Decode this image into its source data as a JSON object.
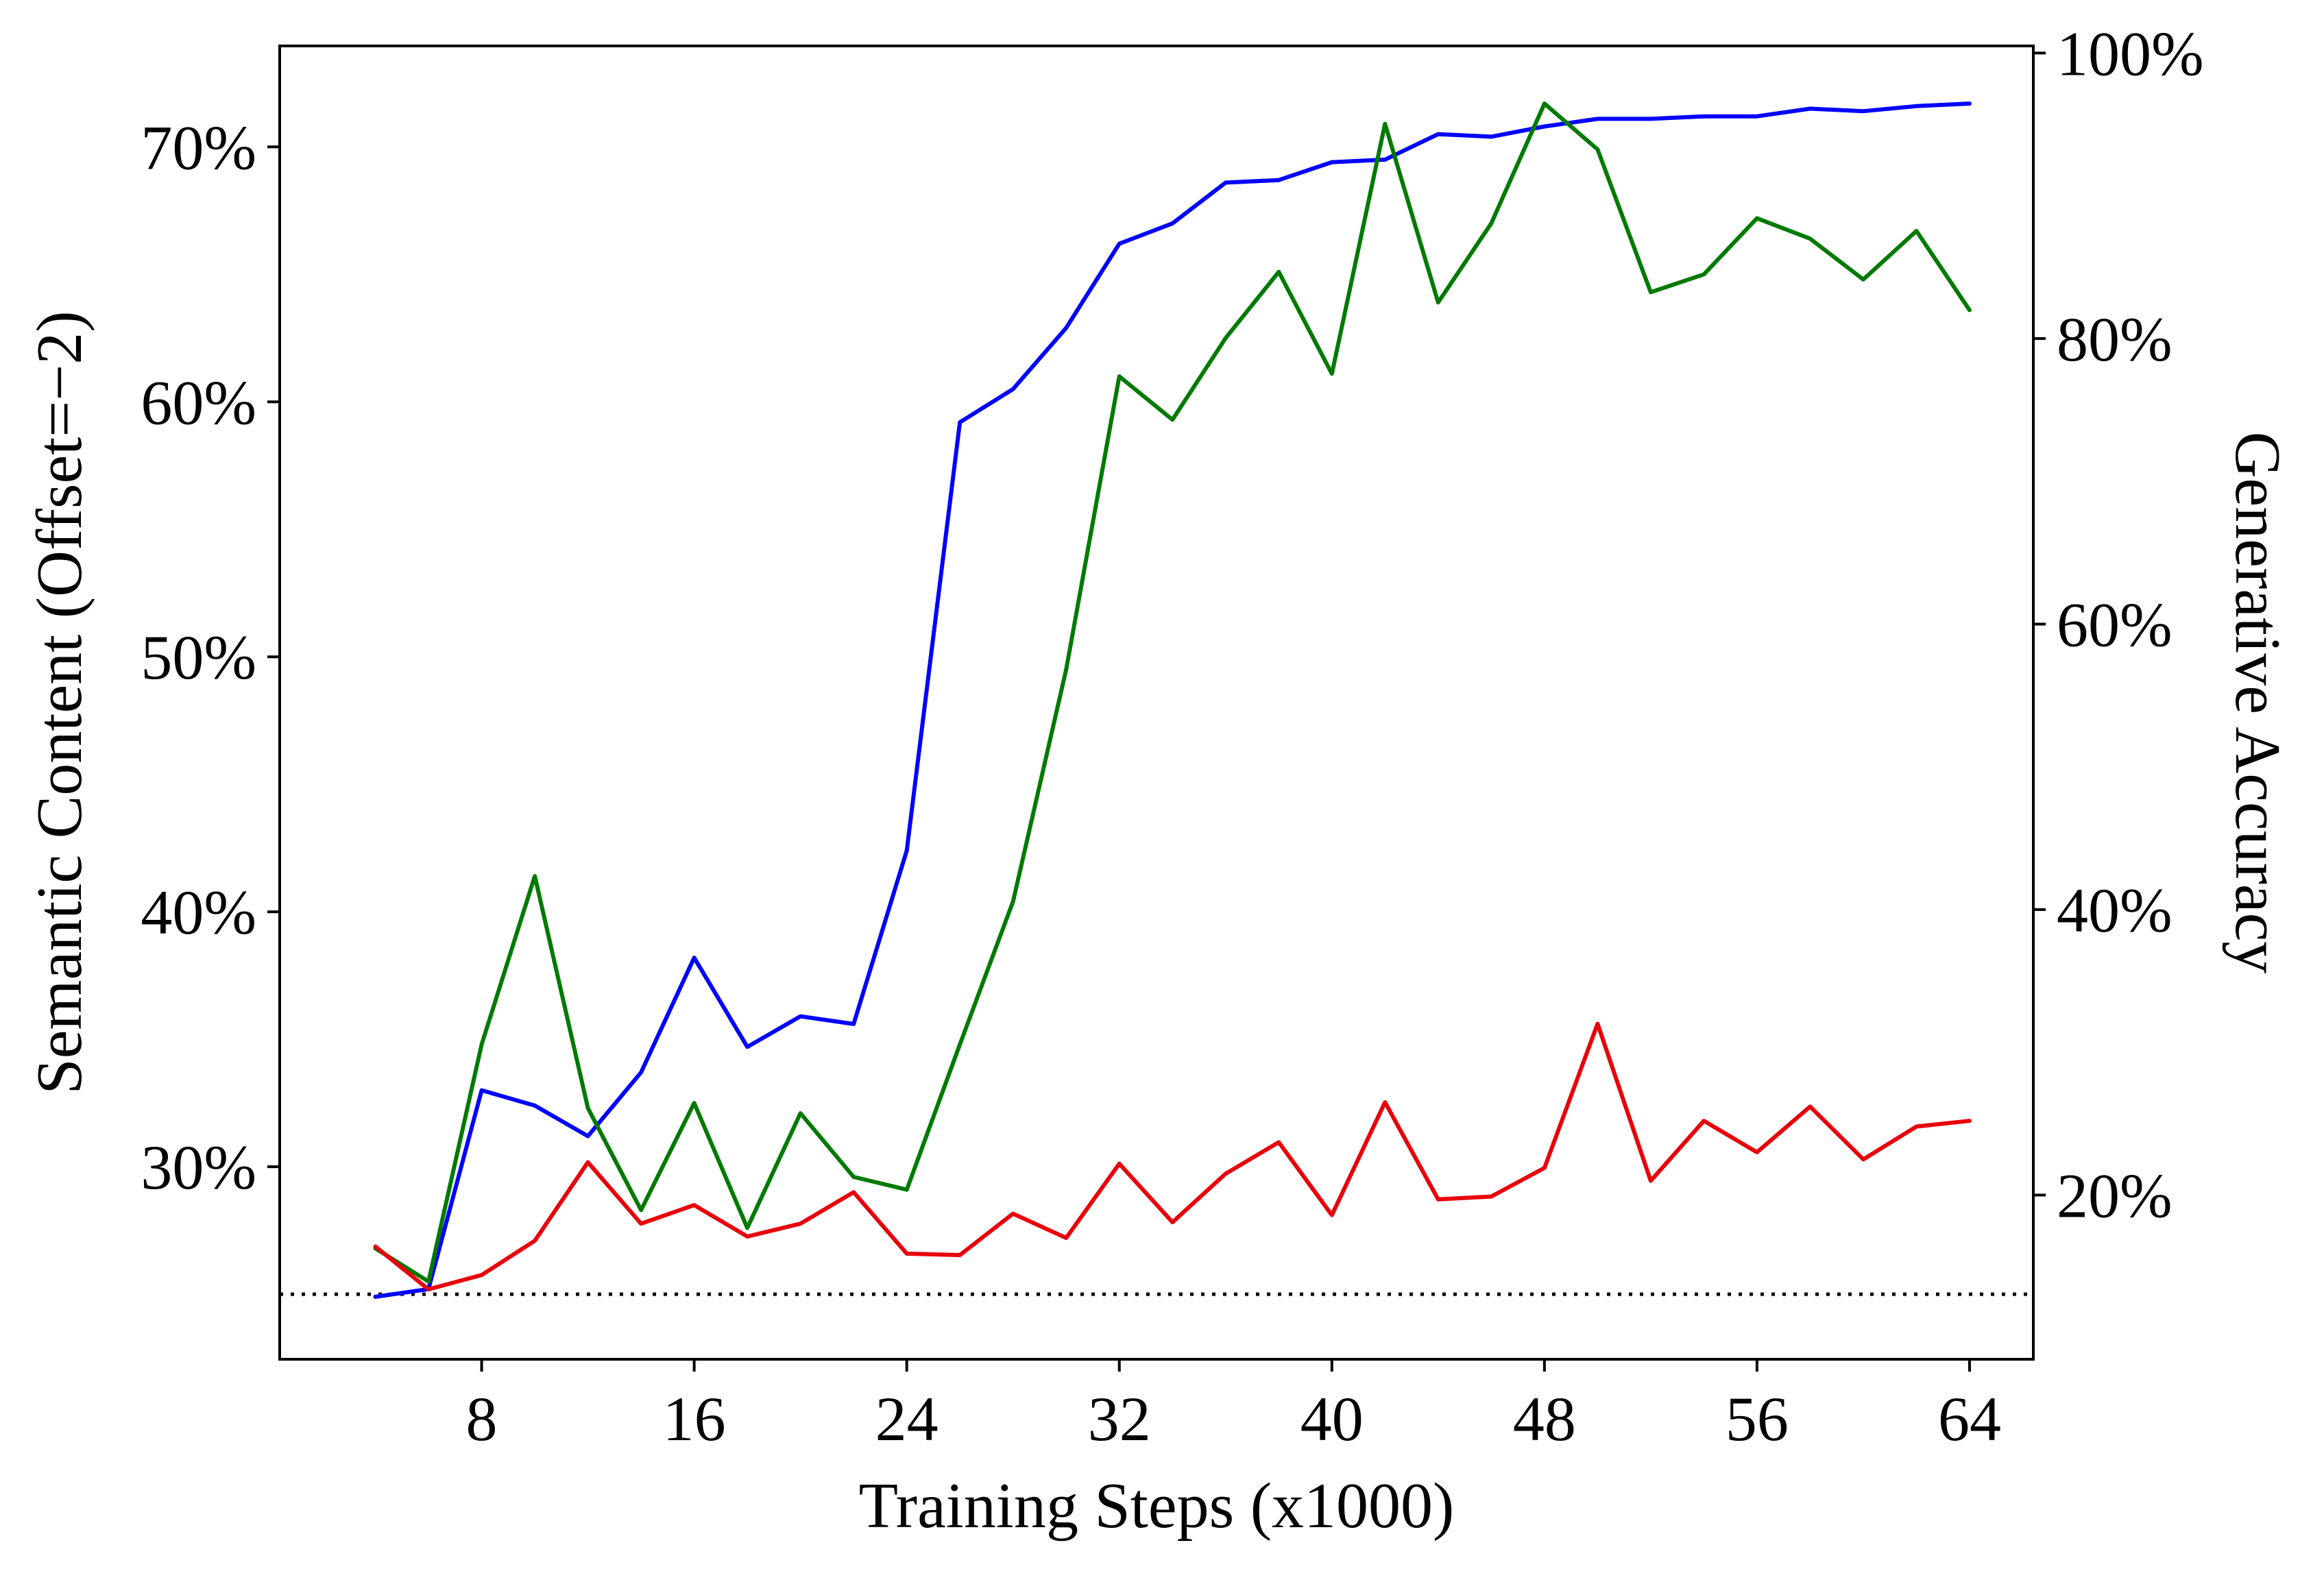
{
  "chart_data": {
    "type": "line",
    "xlabel": "Training Steps (x1000)",
    "ylabel_left": "Semantic Content (Offset=−2)",
    "ylabel_right": "Generative Accuracy",
    "xlim": [
      0.4,
      66.4
    ],
    "ylim_left": [
      0.2245,
      0.7396
    ],
    "ylim_right": [
      0.085,
      1.005
    ],
    "x_ticks": [
      8,
      16,
      24,
      32,
      40,
      48,
      56,
      64
    ],
    "x_tick_labels": [
      "8",
      "16",
      "24",
      "32",
      "40",
      "48",
      "56",
      "64"
    ],
    "y_left_ticks": [
      0.3,
      0.4,
      0.5,
      0.6,
      0.7
    ],
    "y_left_tick_labels": [
      "30%",
      "40%",
      "50%",
      "60%",
      "70%"
    ],
    "y_right_ticks": [
      0.2,
      0.4,
      0.6,
      0.8,
      1.0
    ],
    "y_right_tick_labels": [
      "20%",
      "40%",
      "60%",
      "80%",
      "100%"
    ],
    "reference_line": {
      "axis": "left",
      "y": 0.25,
      "style": "dotted",
      "color": "#000000"
    },
    "x": [
      4,
      6,
      8,
      10,
      12,
      14,
      16,
      18,
      20,
      22,
      24,
      26,
      28,
      30,
      32,
      34,
      36,
      38,
      40,
      42,
      44,
      46,
      48,
      50,
      52,
      54,
      56,
      58,
      60,
      62,
      64
    ],
    "series": [
      {
        "name": "blue",
        "axis": "left",
        "color": "#0000ff",
        "values": [
          0.249,
          0.252,
          0.33,
          0.324,
          0.312,
          0.337,
          0.382,
          0.347,
          0.359,
          0.356,
          0.424,
          0.592,
          0.605,
          0.629,
          0.662,
          0.67,
          0.686,
          0.687,
          0.694,
          0.695,
          0.705,
          0.704,
          0.708,
          0.711,
          0.711,
          0.712,
          0.712,
          0.715,
          0.714,
          0.716,
          0.717
        ]
      },
      {
        "name": "green",
        "axis": "left",
        "color": "#007a00",
        "values": [
          0.268,
          0.255,
          0.348,
          0.414,
          0.323,
          0.283,
          0.325,
          0.276,
          0.321,
          0.296,
          0.291,
          0.348,
          0.404,
          0.495,
          0.61,
          0.593,
          0.625,
          0.651,
          0.611,
          0.709,
          0.639,
          0.67,
          0.717,
          0.699,
          0.643,
          0.65,
          0.672,
          0.664,
          0.648,
          0.667,
          0.636
        ]
      },
      {
        "name": "red",
        "axis": "right",
        "color": "#e8000b",
        "values": [
          0.164,
          0.134,
          0.144,
          0.168,
          0.223,
          0.18,
          0.193,
          0.171,
          0.18,
          0.202,
          0.159,
          0.158,
          0.187,
          0.17,
          0.222,
          0.181,
          0.215,
          0.237,
          0.186,
          0.265,
          0.197,
          0.199,
          0.219,
          0.32,
          0.21,
          0.252,
          0.23,
          0.262,
          0.225,
          0.248,
          0.252
        ]
      }
    ]
  }
}
